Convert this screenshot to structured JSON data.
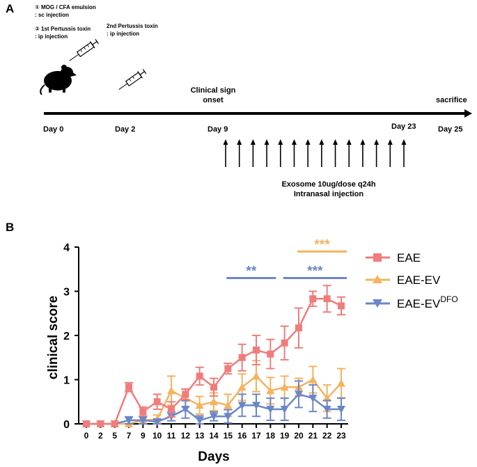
{
  "panel_a": {
    "label": "A",
    "step1_line1": "① MOG / CFA emulsion",
    "step1_line2": ": sc injection",
    "step2_line1": "② 1st Pertussis toxin",
    "step2_line2": ": ip injection",
    "step3_line1": "2nd Pertussis toxin",
    "step3_line2": ": ip injection",
    "onset_line1": "Clinical sign",
    "onset_line2": "onset",
    "sacrifice": "sacrifice",
    "day0": "Day 0",
    "day2": "Day 2",
    "day9": "Day 9",
    "day23": "Day 23",
    "day25": "Day 25",
    "treatment_line1": "Exosome 10ug/dose q24h",
    "treatment_line2": "Intranasal injection",
    "arrow_count": 14
  },
  "chart_data": {
    "type": "line",
    "panel_label": "B",
    "xlabel": "Days",
    "ylabel": "clinical score",
    "categories": [
      "0",
      "2",
      "5",
      "7",
      "9",
      "10",
      "11",
      "12",
      "13",
      "14",
      "15",
      "16",
      "17",
      "18",
      "19",
      "20",
      "21",
      "22",
      "23"
    ],
    "ylim": [
      0,
      4
    ],
    "yticks": [
      "0",
      "1",
      "2",
      "3",
      "4"
    ],
    "series": [
      {
        "name": "EAE",
        "color": "#F07C7C",
        "marker": "square",
        "values": [
          0,
          0,
          0,
          0.83,
          0.28,
          0.5,
          0.33,
          0.67,
          1.08,
          0.83,
          1.25,
          1.5,
          1.67,
          1.58,
          1.83,
          2.17,
          2.83,
          2.83,
          2.67
        ],
        "errors": [
          0,
          0,
          0,
          0.1,
          0.1,
          0.17,
          0.17,
          0.12,
          0.2,
          0.2,
          0.12,
          0.3,
          0.33,
          0.33,
          0.38,
          0.45,
          0.17,
          0.3,
          0.2
        ]
      },
      {
        "name": "EAE-EV",
        "color": "#F4B35E",
        "marker": "triangle-up",
        "values": [
          0,
          0,
          0,
          0,
          0.08,
          0.1,
          0.75,
          0.58,
          0.42,
          0.5,
          0.42,
          0.83,
          1.08,
          0.75,
          0.83,
          0.83,
          1.0,
          0.58,
          0.92
        ],
        "errors": [
          0,
          0,
          0,
          0,
          0.08,
          0.1,
          0.33,
          0.2,
          0.2,
          0.2,
          0.25,
          0.3,
          0.35,
          0.3,
          0.25,
          0.2,
          0.3,
          0.3,
          0.33
        ]
      },
      {
        "name": "EAE-EV",
        "name_sup": "DFO",
        "color": "#6B86C8",
        "marker": "triangle-down",
        "values": [
          0,
          0,
          0,
          0.08,
          0.08,
          0.05,
          0.17,
          0.33,
          0.08,
          0.17,
          0.17,
          0.42,
          0.42,
          0.33,
          0.33,
          0.67,
          0.58,
          0.33,
          0.33
        ],
        "errors": [
          0,
          0,
          0,
          0.08,
          0.08,
          0.05,
          0.1,
          0.2,
          0.1,
          0.1,
          0.15,
          0.25,
          0.25,
          0.25,
          0.25,
          0.3,
          0.3,
          0.2,
          0.25
        ]
      }
    ],
    "annotations": [
      {
        "text": "**",
        "color": "#6B86C8",
        "from": "15",
        "to": "18",
        "y": 3.3
      },
      {
        "text": "***",
        "color": "#6B86C8",
        "from": "19",
        "to": "23",
        "y": 3.3
      },
      {
        "text": "***",
        "color": "#F4B35E",
        "from": "20",
        "to": "23",
        "y": 3.9
      }
    ]
  }
}
